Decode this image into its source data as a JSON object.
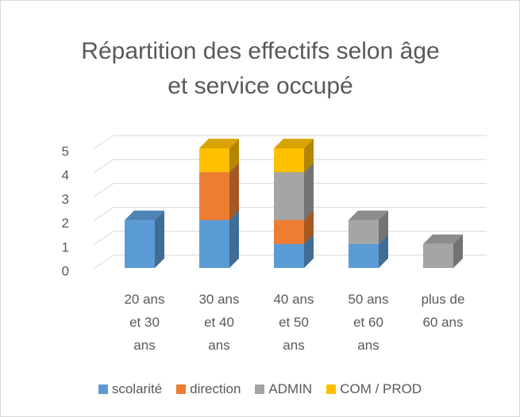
{
  "chart_data": {
    "type": "bar3d_stacked",
    "title": "Répartition des effectifs selon âge et service occupé",
    "categories": [
      "20 ans et 30 ans",
      "30 ans et 40 ans",
      "40 ans et 50 ans",
      "50 ans et 60 ans",
      "plus de 60 ans"
    ],
    "series": [
      {
        "name": "scolarité",
        "color": "#5B9BD5",
        "values": [
          2,
          2,
          1,
          1,
          0
        ]
      },
      {
        "name": "direction",
        "color": "#ED7D31",
        "values": [
          0,
          2,
          1,
          0,
          0
        ]
      },
      {
        "name": "ADMIN",
        "color": "#A5A5A5",
        "values": [
          0,
          0,
          2,
          1,
          1
        ]
      },
      {
        "name": "COM / PROD",
        "color": "#FFC000",
        "values": [
          0,
          1,
          1,
          0,
          0
        ]
      }
    ],
    "ylim": [
      0,
      5
    ],
    "yticks": [
      0,
      1,
      2,
      3,
      4,
      5
    ],
    "grid": true,
    "legend": "bottom"
  }
}
